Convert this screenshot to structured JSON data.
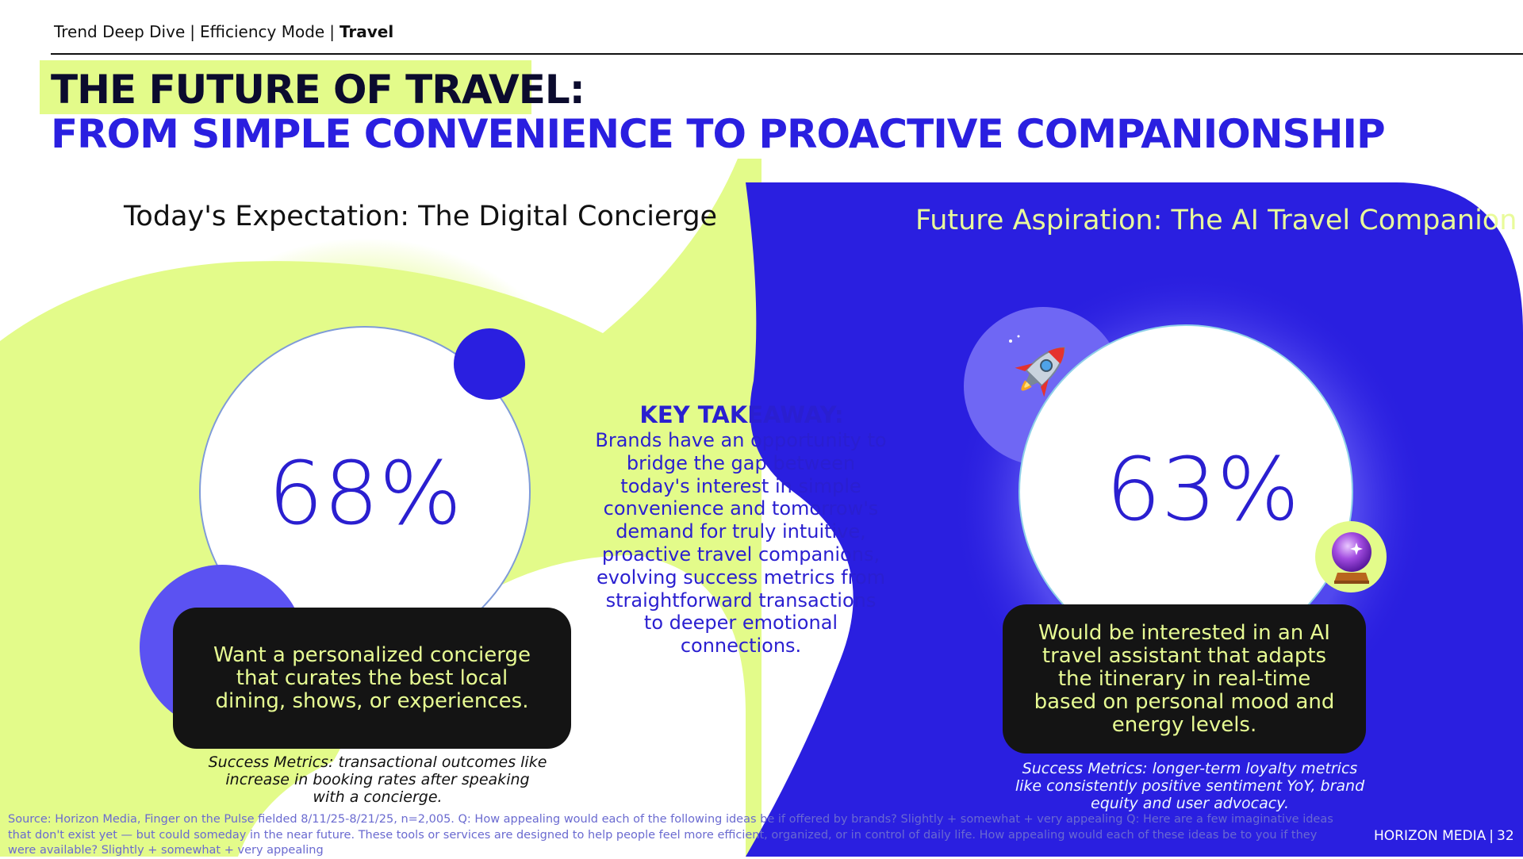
{
  "breadcrumb": {
    "item1": "Trend Deep Dive",
    "item2": "Efficiency Mode",
    "current": "Travel",
    "separator": "|"
  },
  "title": {
    "line1": "THE FUTURE OF TRAVEL:",
    "line2": "FROM SIMPLE CONVENIENCE TO PROACTIVE COMPANIONSHIP"
  },
  "left": {
    "heading": "Today's Expectation: The Digital Concierge",
    "stat": "68%",
    "card_text": "Want a personalized concierge that curates the best local dining, shows, or experiences.",
    "metrics": "Success Metrics: transactional outcomes like increase in booking rates after speaking with a concierge."
  },
  "right": {
    "heading": "Future Aspiration: The AI Travel Companion",
    "stat": "63%",
    "card_text": "Would be interested in an AI travel assistant that adapts the itinerary in real-time based on personal mood and energy levels.",
    "metrics": "Success Metrics: longer-term loyalty metrics like consistently positive sentiment YoY, brand equity and user advocacy.",
    "icons": [
      "rocket-icon",
      "crystal-ball-icon"
    ]
  },
  "takeaway": {
    "title": "KEY TAKEAWAY:",
    "body": "Brands have an opportunity to bridge the gap between today's interest in simple convenience and tomorrow's demand for truly intuitive, proactive travel companions, evolving success metrics from straightforward transactions to deeper emotional connections."
  },
  "footer": {
    "source": "Source: Horizon Media, Finger on the Pulse fielded 8/11/25-8/21/25, n=2,005. Q: How appealing would each of the following ideas be if offered by brands? Slightly + somewhat + very appealing Q: Here are a few imaginative ideas that don't exist yet — but could someday in the near future. These tools or services are designed to help people feel more efficient, organized, or in control of daily life. How appealing would each of these ideas be to you if they were available? Slightly + somewhat + very appealing",
    "brand": "HORIZON MEDIA",
    "separator": "|",
    "page_number": "32"
  },
  "colors": {
    "lime": "#e3fb8a",
    "blue": "#2a1fe0",
    "dark": "#141414",
    "light_text": "#e7fb93",
    "light_purple": "#6a60f0"
  }
}
